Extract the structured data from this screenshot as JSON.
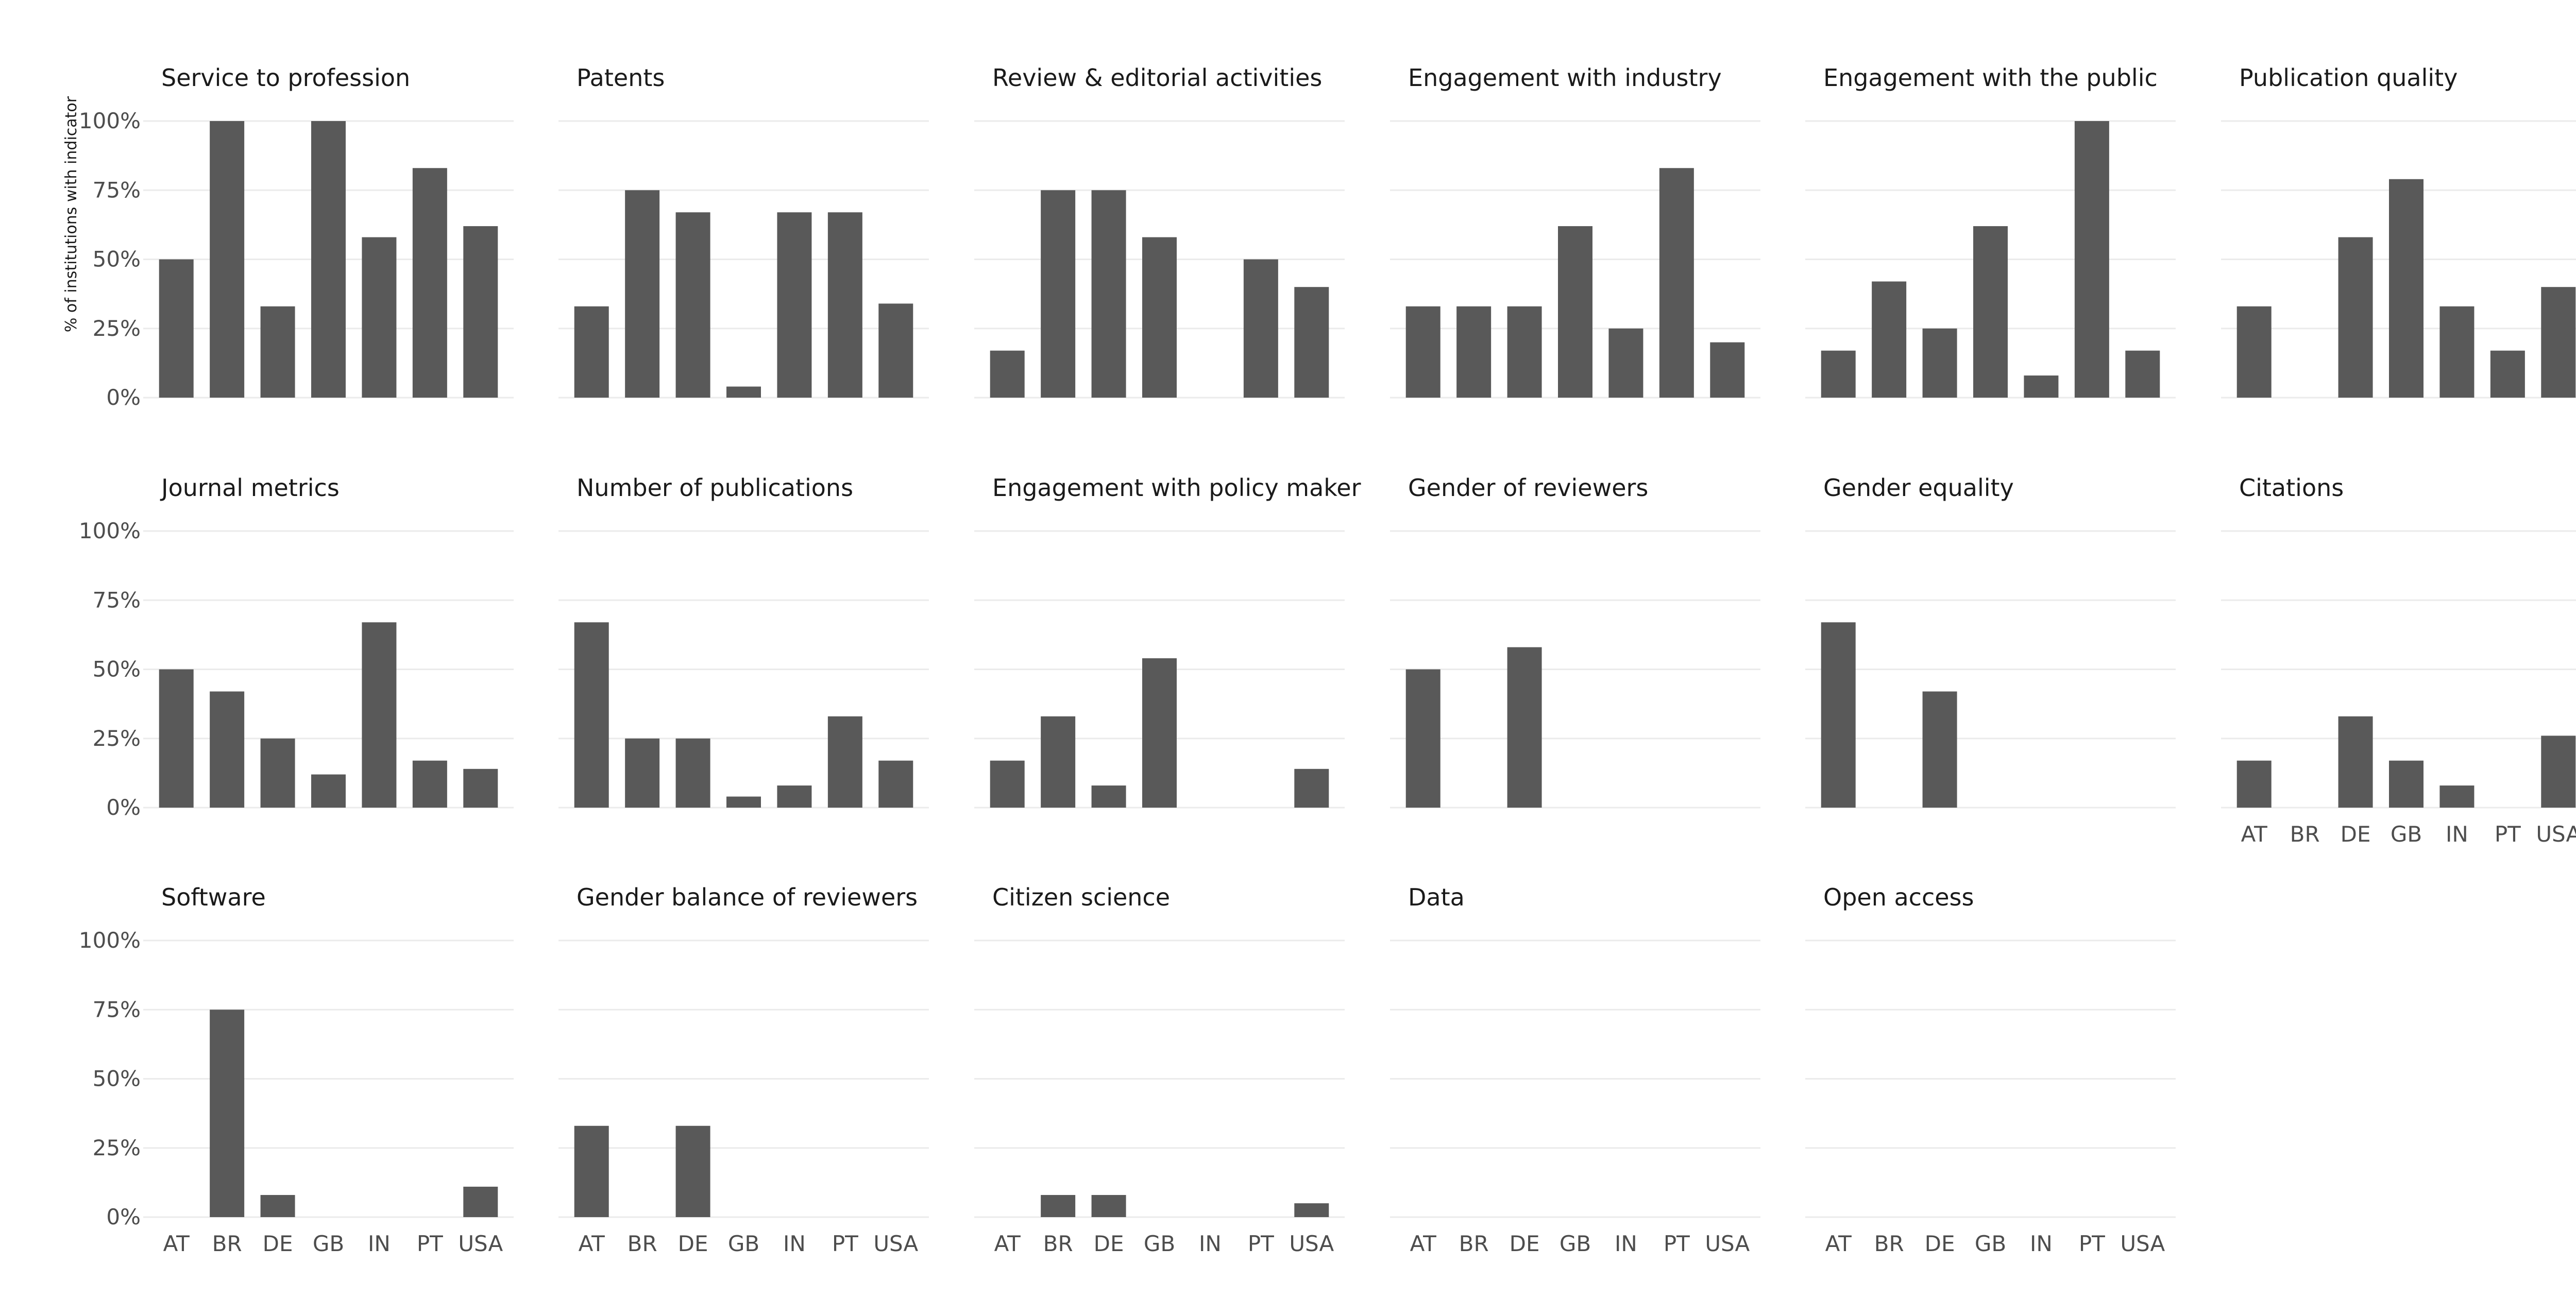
{
  "chart_data": {
    "type": "bar",
    "ylabel": "% of institutions with indicator",
    "categories": [
      "AT",
      "BR",
      "DE",
      "GB",
      "IN",
      "PT",
      "USA"
    ],
    "ylim": [
      0,
      100
    ],
    "yticks": [
      "0%",
      "25%",
      "50%",
      "75%",
      "100%"
    ],
    "grid": true,
    "bar_color": "#595959",
    "grid_color": "#ebebeb",
    "text_color": "#4d4d4d",
    "title_color": "#1a1a1a",
    "panels": [
      {
        "title": "Service to profession",
        "values": [
          50,
          100,
          33,
          100,
          58,
          83,
          62
        ]
      },
      {
        "title": "Patents",
        "values": [
          33,
          75,
          67,
          4,
          67,
          67,
          34
        ]
      },
      {
        "title": "Review & editorial activities",
        "values": [
          17,
          75,
          75,
          58,
          0,
          50,
          40
        ]
      },
      {
        "title": "Engagement with industry",
        "values": [
          33,
          33,
          33,
          62,
          25,
          83,
          20
        ]
      },
      {
        "title": "Engagement with the public",
        "values": [
          17,
          42,
          25,
          62,
          8,
          100,
          17
        ]
      },
      {
        "title": "Publication quality",
        "values": [
          33,
          0,
          58,
          79,
          33,
          17,
          40
        ]
      },
      {
        "title": "Journal metrics",
        "values": [
          50,
          42,
          25,
          12,
          67,
          17,
          14
        ]
      },
      {
        "title": "Number of publications",
        "values": [
          67,
          25,
          25,
          4,
          8,
          33,
          17
        ]
      },
      {
        "title": "Engagement with policy maker",
        "values": [
          17,
          33,
          8,
          54,
          0,
          0,
          14
        ]
      },
      {
        "title": "Gender of reviewers",
        "values": [
          50,
          0,
          58,
          0,
          0,
          0,
          0
        ]
      },
      {
        "title": "Gender equality",
        "values": [
          67,
          0,
          42,
          0,
          0,
          0,
          0
        ]
      },
      {
        "title": "Citations",
        "values": [
          17,
          0,
          33,
          17,
          8,
          0,
          26
        ]
      },
      {
        "title": "Software",
        "values": [
          0,
          75,
          8,
          0,
          0,
          0,
          11
        ]
      },
      {
        "title": "Gender balance of reviewers",
        "values": [
          33,
          0,
          33,
          0,
          0,
          0,
          0
        ]
      },
      {
        "title": "Citizen science",
        "values": [
          0,
          8,
          8,
          0,
          0,
          0,
          5
        ]
      },
      {
        "title": "Data",
        "values": [
          0,
          0,
          0,
          0,
          0,
          0,
          0
        ]
      },
      {
        "title": "Open access",
        "values": [
          0,
          0,
          0,
          0,
          0,
          0,
          0
        ]
      }
    ]
  }
}
